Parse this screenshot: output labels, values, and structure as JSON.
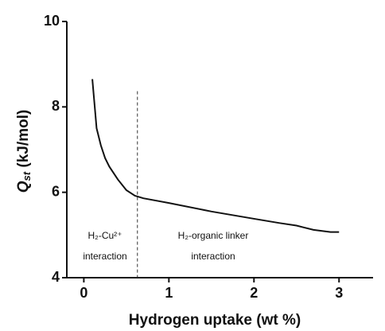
{
  "chart_data": {
    "type": "line",
    "x_label": "Hydrogen uptake (wt %)",
    "y_label": {
      "main": "Q",
      "sub": "st",
      "rest": " (kJ/mol)"
    },
    "x": [
      0.1,
      0.15,
      0.2,
      0.25,
      0.3,
      0.4,
      0.5,
      0.6,
      0.7,
      1.0,
      1.5,
      2.0,
      2.3,
      2.5,
      2.7,
      2.9,
      3.0
    ],
    "series": [
      {
        "color": "#111111",
        "values": [
          8.65,
          7.5,
          7.1,
          6.8,
          6.6,
          6.3,
          6.05,
          5.92,
          5.86,
          5.75,
          5.55,
          5.38,
          5.28,
          5.22,
          5.12,
          5.07,
          5.07
        ]
      }
    ],
    "xlim": [
      -0.2,
      3.4
    ],
    "ylim": [
      4,
      10
    ],
    "xticks": [
      0,
      1,
      2,
      3
    ],
    "yticks": [
      4,
      6,
      8,
      10
    ],
    "divider_x": 0.63,
    "annotations": [
      {
        "lines": [
          "H₂-Cu²⁺",
          "interaction"
        ]
      },
      {
        "lines": [
          "H₂-organic linker",
          "interaction"
        ]
      }
    ]
  }
}
